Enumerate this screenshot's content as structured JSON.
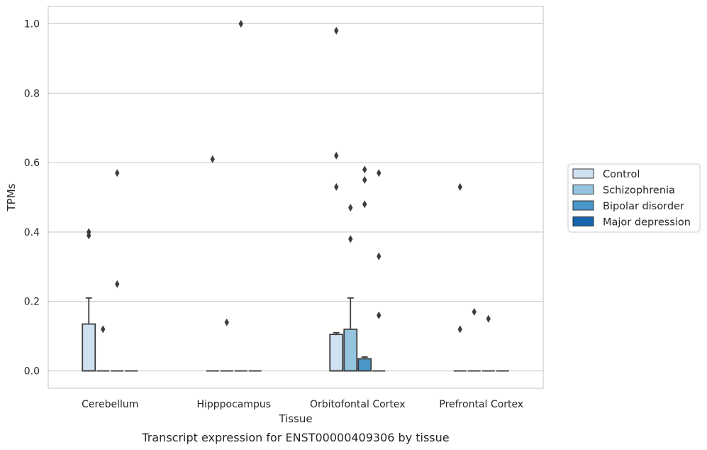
{
  "caption": "Transcript expression for ENST00000409306 by tissue",
  "chart_data": {
    "type": "box",
    "xlabel": "Tissue",
    "ylabel": "TPMs",
    "ylim": [
      -0.05,
      1.05
    ],
    "yticks": [
      0.0,
      0.2,
      0.4,
      0.6,
      0.8,
      1.0
    ],
    "ytick_labels": [
      "0.0",
      "0.2",
      "0.4",
      "0.6",
      "0.8",
      "1.0"
    ],
    "grid": "horizontal",
    "legend_position": "right",
    "categories": [
      "Cerebellum",
      "Hipppocampus",
      "Orbitofontal Cortex",
      "Prefrontal Cortex"
    ],
    "series": [
      {
        "name": "Control",
        "color": "#d0e1f2",
        "boxes": [
          {
            "q1": 0.0,
            "median": 0.0,
            "q3": 0.135,
            "whisker_low": 0.0,
            "whisker_high": 0.21,
            "outliers": [
              0.39,
              0.4
            ]
          },
          {
            "q1": 0.0,
            "median": 0.0,
            "q3": 0.0,
            "whisker_low": 0.0,
            "whisker_high": 0.0,
            "outliers": [
              0.61
            ]
          },
          {
            "q1": 0.0,
            "median": 0.0,
            "q3": 0.105,
            "whisker_low": 0.0,
            "whisker_high": 0.11,
            "outliers": [
              0.53,
              0.62,
              0.98
            ]
          },
          {
            "q1": 0.0,
            "median": 0.0,
            "q3": 0.0,
            "whisker_low": 0.0,
            "whisker_high": 0.0,
            "outliers": [
              0.12,
              0.53
            ]
          }
        ]
      },
      {
        "name": "Schizophrenia",
        "color": "#94c4df",
        "boxes": [
          {
            "q1": 0.0,
            "median": 0.0,
            "q3": 0.0,
            "whisker_low": 0.0,
            "whisker_high": 0.0,
            "outliers": [
              0.12
            ]
          },
          {
            "q1": 0.0,
            "median": 0.0,
            "q3": 0.0,
            "whisker_low": 0.0,
            "whisker_high": 0.0,
            "outliers": [
              0.14
            ]
          },
          {
            "q1": 0.0,
            "median": 0.0,
            "q3": 0.12,
            "whisker_low": 0.0,
            "whisker_high": 0.21,
            "outliers": [
              0.38,
              0.47
            ]
          },
          {
            "q1": 0.0,
            "median": 0.0,
            "q3": 0.0,
            "whisker_low": 0.0,
            "whisker_high": 0.0,
            "outliers": [
              0.17
            ]
          }
        ]
      },
      {
        "name": "Bipolar disorder",
        "color": "#4a98c9",
        "boxes": [
          {
            "q1": 0.0,
            "median": 0.0,
            "q3": 0.0,
            "whisker_low": 0.0,
            "whisker_high": 0.0,
            "outliers": [
              0.25,
              0.57
            ]
          },
          {
            "q1": 0.0,
            "median": 0.0,
            "q3": 0.0,
            "whisker_low": 0.0,
            "whisker_high": 0.0,
            "outliers": [
              1.0
            ]
          },
          {
            "q1": 0.0,
            "median": 0.0,
            "q3": 0.035,
            "whisker_low": 0.0,
            "whisker_high": 0.04,
            "outliers": [
              0.48,
              0.55,
              0.58
            ]
          },
          {
            "q1": 0.0,
            "median": 0.0,
            "q3": 0.0,
            "whisker_low": 0.0,
            "whisker_high": 0.0,
            "outliers": [
              0.15
            ]
          }
        ]
      },
      {
        "name": "Major depression",
        "color": "#1764ab",
        "boxes": [
          {
            "q1": 0.0,
            "median": 0.0,
            "q3": 0.0,
            "whisker_low": 0.0,
            "whisker_high": 0.0,
            "outliers": []
          },
          {
            "q1": 0.0,
            "median": 0.0,
            "q3": 0.0,
            "whisker_low": 0.0,
            "whisker_high": 0.0,
            "outliers": []
          },
          {
            "q1": 0.0,
            "median": 0.0,
            "q3": 0.0,
            "whisker_low": 0.0,
            "whisker_high": 0.0,
            "outliers": [
              0.16,
              0.33,
              0.57
            ]
          },
          {
            "q1": 0.0,
            "median": 0.0,
            "q3": 0.0,
            "whisker_low": 0.0,
            "whisker_high": 0.0,
            "outliers": []
          }
        ]
      }
    ]
  }
}
